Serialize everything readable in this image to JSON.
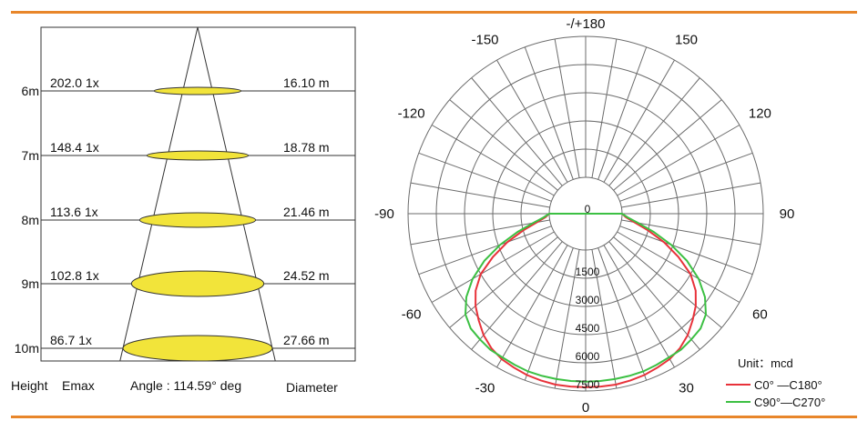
{
  "colors": {
    "accent_rule": "#e8862a",
    "spot_fill": "#f2e43a",
    "c0_series": "#e8323a",
    "c90_series": "#3cc043",
    "grid": "#6b6b6b"
  },
  "beam": {
    "height_header": "Height",
    "emax_header": "Emax",
    "angle_label": "Angle : 114.59° deg",
    "diameter_header": "Diameter",
    "rows": [
      {
        "height": "6m",
        "emax": "202.0 1x",
        "diameter": "16.10 m"
      },
      {
        "height": "7m",
        "emax": "148.4 1x",
        "diameter": "18.78 m"
      },
      {
        "height": "8m",
        "emax": "113.6 1x",
        "diameter": "21.46 m"
      },
      {
        "height": "9m",
        "emax": "102.8 1x",
        "diameter": "24.52 m"
      },
      {
        "height": "10m",
        "emax": "86.7 1x",
        "diameter": "27.66 m"
      }
    ]
  },
  "chart_data": {
    "type": "polar",
    "angle_labels": [
      "-/+180",
      "150",
      "120",
      "90",
      "60",
      "30",
      "0",
      "-30",
      "-60",
      "-90",
      "-120",
      "-150"
    ],
    "radial_ticks": [
      0,
      1500,
      3000,
      4500,
      6000,
      7500
    ],
    "radial_max": 7500,
    "unit_label": "Unit：mcd",
    "legend_position": "bottom-right",
    "series": [
      {
        "name": "C0° —C180°",
        "angles": [
          -90,
          -85,
          -80,
          -75,
          -70,
          -65,
          -60,
          -55,
          -50,
          -45,
          -40,
          -35,
          -30,
          -25,
          -20,
          -15,
          -10,
          -5,
          0,
          5,
          10,
          15,
          20,
          25,
          30,
          35,
          40,
          45,
          50,
          55,
          60,
          65,
          70,
          75,
          80,
          85,
          90
        ],
        "values": [
          0,
          200,
          700,
          1500,
          2500,
          3500,
          4500,
          5200,
          5700,
          6100,
          6500,
          6800,
          7000,
          7100,
          7200,
          7250,
          7300,
          7300,
          7300,
          7300,
          7300,
          7250,
          7200,
          7100,
          7000,
          6800,
          6500,
          6100,
          5700,
          5200,
          4500,
          3500,
          2500,
          1500,
          700,
          200,
          0
        ]
      },
      {
        "name": "C90°—C270°",
        "angles": [
          -90,
          -85,
          -80,
          -75,
          -70,
          -65,
          -60,
          -55,
          -50,
          -45,
          -40,
          -35,
          -30,
          -25,
          -20,
          -15,
          -10,
          -5,
          0,
          5,
          10,
          15,
          20,
          25,
          30,
          35,
          40,
          45,
          50,
          55,
          60,
          65,
          70,
          75,
          80,
          85,
          90
        ],
        "values": [
          0,
          300,
          900,
          1800,
          2900,
          4000,
          5000,
          5800,
          6400,
          6700,
          6800,
          6900,
          6900,
          6950,
          7000,
          7000,
          7000,
          7000,
          7000,
          7000,
          7000,
          7000,
          7000,
          6950,
          6900,
          6900,
          6800,
          6700,
          6400,
          5800,
          5000,
          4000,
          2900,
          1800,
          900,
          300,
          0
        ]
      }
    ]
  }
}
